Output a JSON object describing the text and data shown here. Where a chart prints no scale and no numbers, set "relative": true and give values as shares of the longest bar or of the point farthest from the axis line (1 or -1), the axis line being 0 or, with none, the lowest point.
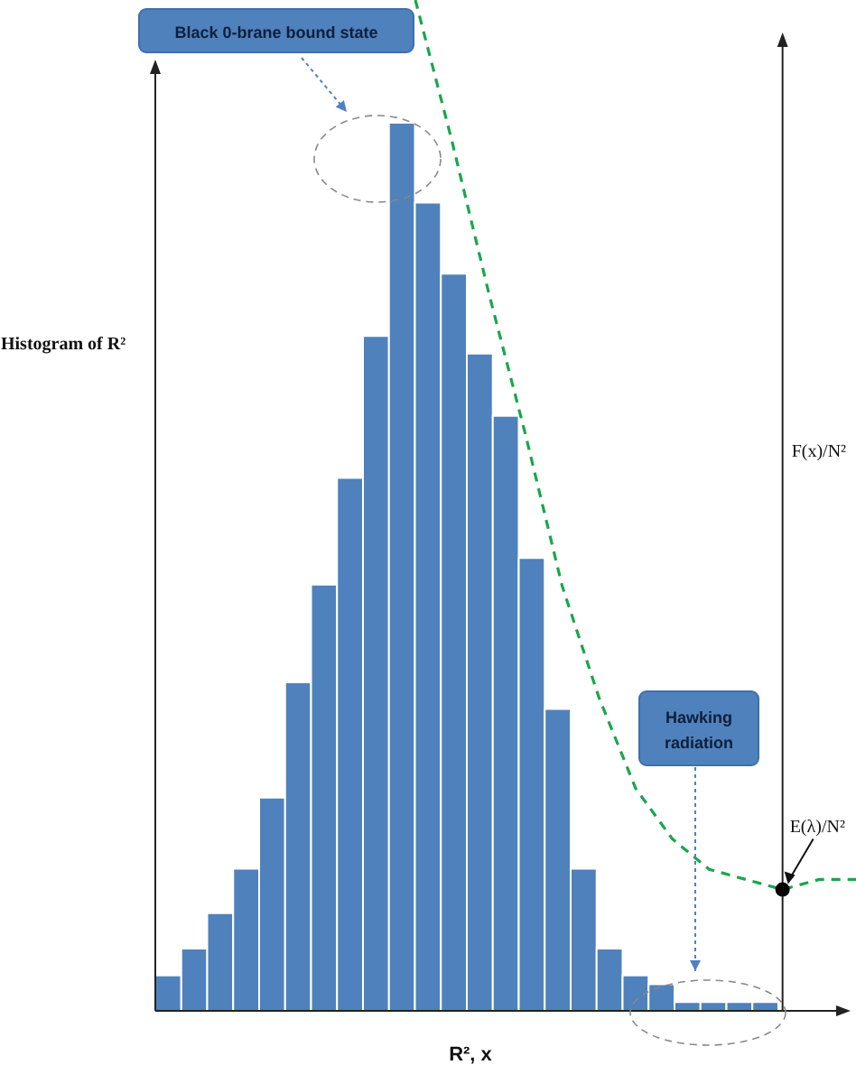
{
  "chart_data": [
    {
      "type": "bar",
      "relative": true,
      "xlabel": "R², x",
      "ylabel": "Histogram of R²",
      "categories": [
        null,
        null,
        null,
        null,
        null,
        null,
        null,
        null,
        null,
        null,
        null,
        null,
        null,
        null,
        null,
        null,
        null,
        null,
        null,
        null,
        null,
        null,
        null,
        null
      ],
      "series": [
        {
          "color": "#4f81bd",
          "values": [
            0.04,
            0.07,
            0.11,
            0.16,
            0.24,
            0.37,
            0.48,
            0.6,
            0.76,
            1,
            0.91,
            0.83,
            0.74,
            0.67,
            0.51,
            0.34,
            0.16,
            0.07,
            0.04,
            0.03,
            0.01,
            0.01,
            0.01,
            0.01
          ]
        }
      ],
      "annotations": [
        "Black 0-brane bound state",
        "Hawking radiation"
      ]
    },
    {
      "type": "line",
      "relative": true,
      "ylabel": "F(x)/N²",
      "line_style": "dashed",
      "categories": [
        null,
        null,
        null,
        null,
        null,
        null,
        null,
        null,
        null,
        null,
        null,
        null,
        null
      ],
      "series": [
        {
          "color": "#1aa64b",
          "values": [
            1,
            0.86,
            0.71,
            0.57,
            0.42,
            0.31,
            0.22,
            0.17,
            0.14,
            0.13,
            0.12,
            0.13,
            0.13
          ]
        }
      ],
      "annotations": [
        {
          "text": "E(λ)/N²",
          "y": 0.12
        }
      ]
    }
  ]
}
